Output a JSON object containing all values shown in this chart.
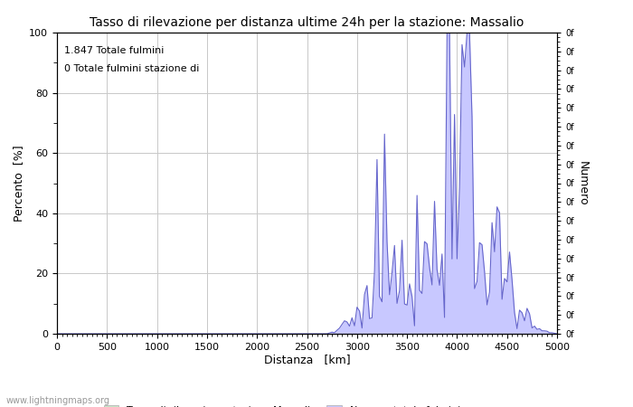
{
  "title": "Tasso di rilevazione per distanza ultime 24h per la stazione: Massalio",
  "xlabel": "Distanza   [km]",
  "ylabel_left": "Percento  [%]",
  "ylabel_right": "Numero",
  "annotation_line1": "1.847 Totale fulmini",
  "annotation_line2": "0 Totale fulmini stazione di",
  "legend_label1": "Tasso di rilevazione stazione Massalio",
  "legend_label2": "Numero totale fulmini",
  "xlim": [
    0,
    5000
  ],
  "ylim": [
    0,
    100
  ],
  "xticks": [
    0,
    500,
    1000,
    1500,
    2000,
    2500,
    3000,
    3500,
    4000,
    4500,
    5000
  ],
  "yticks_left": [
    0,
    20,
    40,
    60,
    80,
    100
  ],
  "yticks_right_labels": [
    "0f",
    "0f",
    "0f",
    "0f",
    "0f",
    "0f",
    "0f",
    "0f",
    "0f",
    "0f",
    "0f",
    "0f",
    "0f",
    "0f",
    "0f",
    "0f",
    "0f"
  ],
  "footer": "www.lightningmaps.org",
  "bg_color": "#ffffff",
  "grid_color": "#c8c8c8",
  "fill_green_color": "#c8e6c8",
  "fill_blue_color": "#c8c8ff",
  "line_blue_color": "#6666cc",
  "line_green_color": "#88cc88"
}
